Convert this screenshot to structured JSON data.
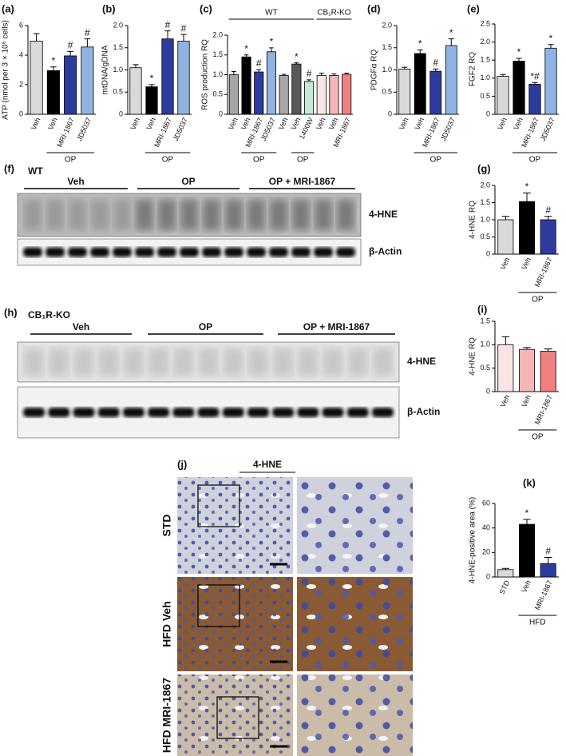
{
  "chart_data": [
    {
      "type": "bar",
      "label": "(a)",
      "y_label": "ATP (nmol per 3 × 10⁶ cells)",
      "categories": [
        "Veh",
        "Veh",
        "MRI-1867",
        "JD5037"
      ],
      "values": [
        4.95,
        2.95,
        3.95,
        4.55
      ],
      "errors": [
        0.5,
        0.25,
        0.3,
        0.55
      ],
      "colors": [
        "#d9d9d9",
        "#000000",
        "#2e3b9e",
        "#8fb4e3"
      ],
      "markers": [
        null,
        "*",
        "#",
        "#"
      ],
      "groups": [
        {
          "label": "OP",
          "start": 1,
          "end": 3
        }
      ],
      "ylim": [
        0,
        6
      ],
      "yticks": [
        0,
        2,
        4,
        6
      ]
    },
    {
      "type": "bar",
      "label": "(b)",
      "y_label": "mtDNA/gDNA",
      "categories": [
        "Veh",
        "Veh",
        "MRI-1867",
        "JD5037"
      ],
      "values": [
        1.05,
        0.62,
        1.7,
        1.65
      ],
      "errors": [
        0.07,
        0.05,
        0.18,
        0.15
      ],
      "colors": [
        "#d9d9d9",
        "#000000",
        "#2e3b9e",
        "#8fb4e3"
      ],
      "markers": [
        null,
        "*",
        "#",
        "#"
      ],
      "groups": [
        {
          "label": "OP",
          "start": 1,
          "end": 3
        }
      ],
      "ylim": [
        0,
        2
      ],
      "yticks": [
        0,
        0.5,
        {
          "value": 1,
          "label": "1.0"
        },
        1.5,
        {
          "value": 2,
          "label": "2.0"
        }
      ]
    },
    {
      "type": "bar",
      "label": "(c)",
      "y_label": "ROS production RQ",
      "categories": [
        "Veh",
        "Veh",
        "MRI-1867",
        "JD5037",
        "Veh",
        "Veh",
        "1400W",
        "Veh",
        "Veh",
        "MRI-1867"
      ],
      "values": [
        1.0,
        1.45,
        1.07,
        1.58,
        0.98,
        1.27,
        0.83,
        0.98,
        0.98,
        1.01
      ],
      "errors": [
        0.08,
        0.05,
        0.06,
        0.1,
        0.03,
        0.03,
        0.04,
        0.06,
        0.04,
        0.03
      ],
      "colors": [
        "#a6a6a6",
        "#000000",
        "#2e3b9e",
        "#8fb4e3",
        "#a6a6a6",
        "#595959",
        "#c6e6d6",
        "#fbe4e4",
        "#f4b6b6",
        "#f08080"
      ],
      "markers": [
        null,
        "*",
        "#",
        "*",
        null,
        "*",
        "#",
        null,
        null,
        null
      ],
      "groups": [
        {
          "label": "OP",
          "start": 1,
          "end": 3
        },
        {
          "label": "OP",
          "start": 5,
          "end": 6
        }
      ],
      "top_groups": [
        {
          "label": "WT",
          "start": 0,
          "end": 6
        },
        {
          "label": "CB₁R-KO",
          "start": 7,
          "end": 9
        }
      ],
      "ylim": [
        0,
        2
      ],
      "yticks": [
        0,
        0.5,
        {
          "value": 1,
          "label": "1.0"
        },
        1.5,
        {
          "value": 2,
          "label": "2.0"
        }
      ]
    },
    {
      "type": "bar",
      "label": "(d)",
      "y_label": "PDGFα RQ",
      "categories": [
        "Veh",
        "Veh",
        "MRI-1867",
        "JD5037"
      ],
      "values": [
        1.02,
        1.37,
        0.97,
        1.55
      ],
      "errors": [
        0.04,
        0.08,
        0.05,
        0.15
      ],
      "colors": [
        "#d9d9d9",
        "#000000",
        "#2e3b9e",
        "#8fb4e3"
      ],
      "markers": [
        null,
        "*",
        "#",
        "*"
      ],
      "groups": [
        {
          "label": "OP",
          "start": 1,
          "end": 3
        }
      ],
      "ylim": [
        0,
        2
      ],
      "yticks": [
        0,
        0.5,
        {
          "value": 1,
          "label": "1.0"
        },
        1.5,
        {
          "value": 2,
          "label": "2.0"
        }
      ]
    },
    {
      "type": "bar",
      "label": "(e)",
      "y_label": "FGF2 RQ",
      "categories": [
        "Veh",
        "Veh",
        "MRI-1867",
        "JD5037"
      ],
      "values": [
        1.05,
        1.47,
        0.83,
        1.83
      ],
      "errors": [
        0.05,
        0.08,
        0.05,
        0.1
      ],
      "colors": [
        "#d9d9d9",
        "#000000",
        "#2e3b9e",
        "#8fb4e3"
      ],
      "markers": [
        null,
        "*",
        "*#",
        "*"
      ],
      "groups": [
        {
          "label": "OP",
          "start": 1,
          "end": 3
        }
      ],
      "ylim": [
        0,
        2.5
      ],
      "yticks": [
        0,
        0.5,
        {
          "value": 1,
          "label": "1.0"
        },
        1.5,
        {
          "value": 2,
          "label": "2.0"
        },
        2.5
      ]
    },
    {
      "type": "bar",
      "label": "(g)",
      "y_label": "4-HNE RQ",
      "categories": [
        "Veh",
        "Veh",
        "MRI-1867"
      ],
      "values": [
        1.0,
        1.53,
        1.0
      ],
      "errors": [
        0.1,
        0.25,
        0.1
      ],
      "colors": [
        "#d9d9d9",
        "#000000",
        "#2e3b9e"
      ],
      "markers": [
        null,
        "*",
        "#"
      ],
      "groups": [
        {
          "label": "OP",
          "start": 1,
          "end": 2
        }
      ],
      "ylim": [
        0,
        2
      ],
      "yticks": [
        0,
        0.5,
        {
          "value": 1,
          "label": "1.0"
        },
        1.5,
        {
          "value": 2,
          "label": "2.0"
        }
      ]
    },
    {
      "type": "bar",
      "label": "(i)",
      "y_label": "4-HNE RQ",
      "categories": [
        "Veh",
        "Veh",
        "MRI-1867"
      ],
      "values": [
        1.0,
        0.9,
        0.86
      ],
      "errors": [
        0.17,
        0.04,
        0.05
      ],
      "colors": [
        "#fbe4e4",
        "#f4b6b6",
        "#f08080"
      ],
      "groups": [
        {
          "label": "OP",
          "start": 1,
          "end": 2
        }
      ],
      "ylim": [
        0,
        1.5
      ],
      "yticks": [
        0,
        0.5,
        {
          "value": 1,
          "label": "1.0"
        },
        1.5
      ]
    },
    {
      "type": "bar",
      "label": "(k)",
      "y_label": "4-HNE-positive area (%)",
      "categories": [
        "STD",
        "Veh",
        "MRI-1867"
      ],
      "values": [
        6,
        43,
        11
      ],
      "errors": [
        1,
        4,
        5
      ],
      "colors": [
        "#d9d9d9",
        "#000000",
        "#2e3b9e"
      ],
      "markers": [
        null,
        "*",
        "#"
      ],
      "groups": [
        {
          "label": "HFD",
          "start": 1,
          "end": 2
        }
      ],
      "ylim": [
        0,
        60
      ],
      "yticks": [
        0,
        20,
        40,
        60
      ]
    }
  ],
  "blots": [
    {
      "label": "(f)",
      "genotype": "WT",
      "groups": [
        "Veh",
        "OP",
        "OP + MRI-1867"
      ],
      "bands": [
        "4-HNE",
        "β-Actin"
      ]
    },
    {
      "label": "(h)",
      "genotype": "CB₁R-KO",
      "groups": [
        "Veh",
        "OP",
        "OP + MRI-1867"
      ],
      "bands": [
        "4-HNE",
        "β-Actin"
      ]
    }
  ],
  "histology": {
    "label": "(j)",
    "stain": "4-HNE",
    "rows": [
      "STD",
      "HFD Veh",
      "HFD MRI-1867"
    ]
  }
}
